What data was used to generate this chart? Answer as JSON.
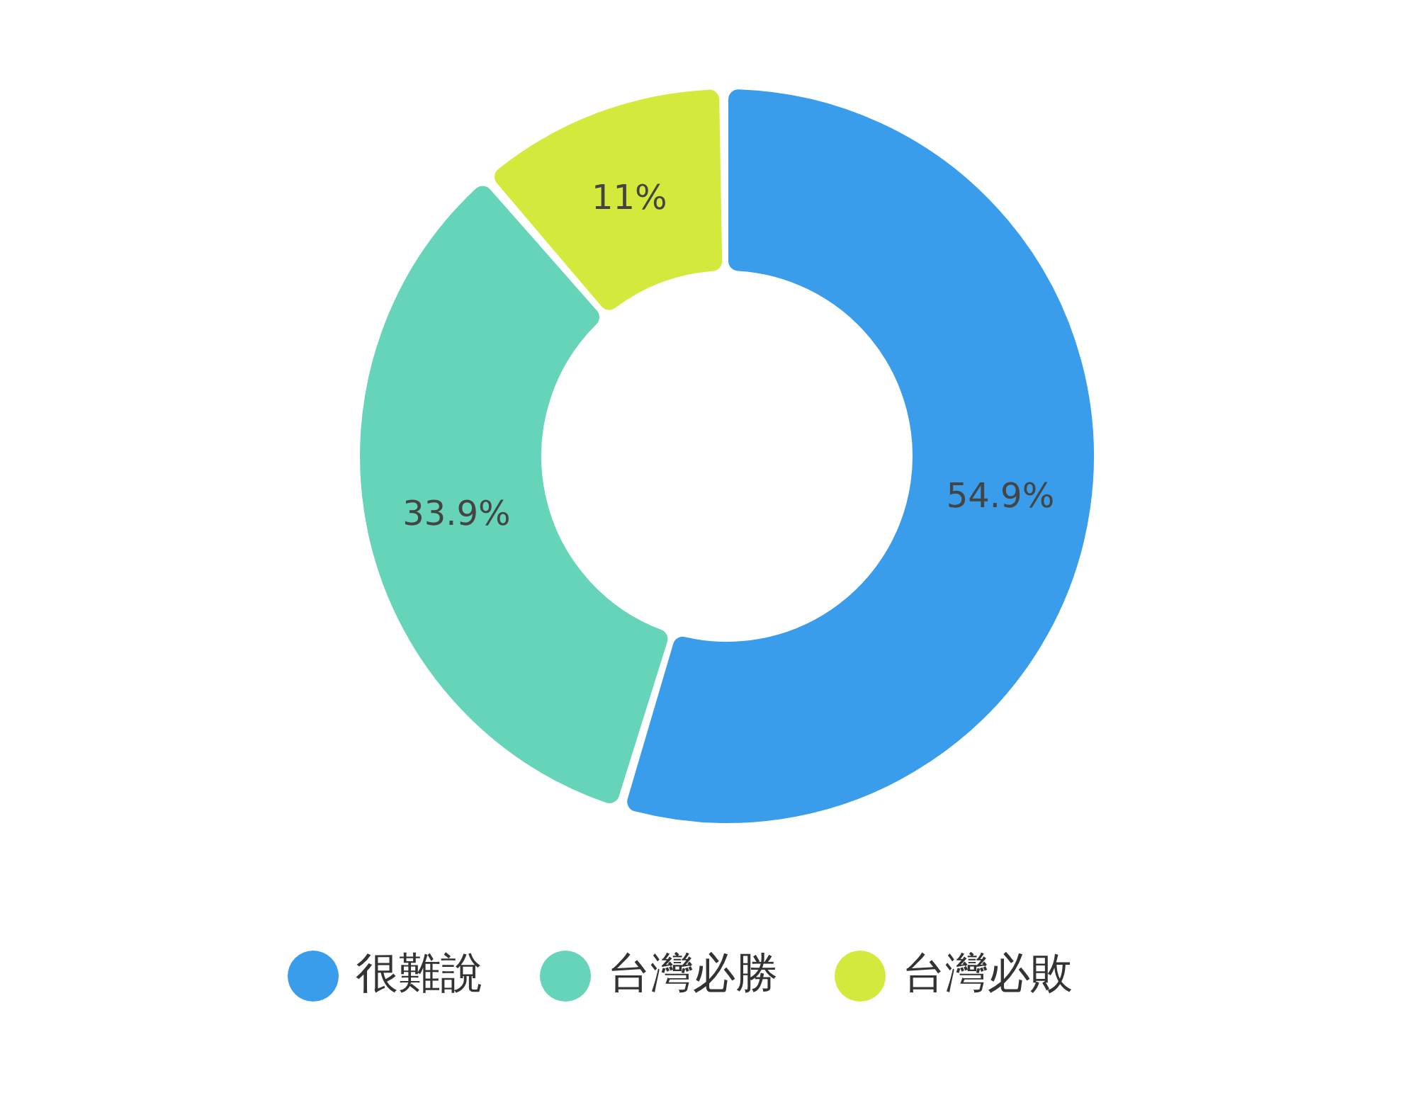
{
  "chart_data": {
    "type": "donut",
    "categories": [
      "很難說",
      "台灣必勝",
      "台灣必敗"
    ],
    "values": [
      54.9,
      33.9,
      11
    ],
    "value_labels": [
      "54.9%",
      "33.9%",
      "11%"
    ],
    "colors": [
      "#399deb",
      "#66d4b9",
      "#d3ea3c"
    ],
    "legend": "bottom"
  }
}
